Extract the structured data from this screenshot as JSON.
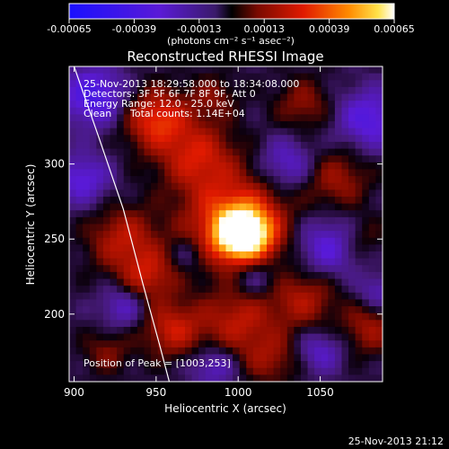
{
  "colorbar": {
    "tick_labels": [
      "-0.00065",
      "-0.00039",
      "-0.00013",
      "0.00013",
      "0.00039",
      "0.00065"
    ],
    "units": "(photons cm⁻² s⁻¹ asec⁻²)"
  },
  "chart_data": {
    "type": "heatmap",
    "title": "Reconstructed RHESSI Image",
    "xlabel": "Heliocentric X (arcsec)",
    "ylabel": "Heliocentric Y (arcsec)",
    "xlim": [
      897,
      1088
    ],
    "ylim": [
      155,
      365
    ],
    "x_ticks": [
      900,
      950,
      1000,
      1050
    ],
    "y_ticks": [
      200,
      250,
      300
    ],
    "value_range": [
      -0.00065,
      0.00065
    ],
    "colormap": "blue-purple-red-orange-yellow-white",
    "peak": {
      "x": 1003,
      "y": 253
    },
    "limb_curve": [
      [
        900,
        365
      ],
      [
        915,
        318
      ],
      [
        930,
        270
      ],
      [
        942,
        220
      ],
      [
        952,
        180
      ],
      [
        958,
        155
      ]
    ],
    "annotations": {
      "time_range": "25-Nov-2013 18:29:58.000 to 18:34:08.000",
      "detectors": "Detectors: 3F 5F 6F 7F 8F 9F, Att 0",
      "energy": "Energy Range: 12.0 - 25.0 keV",
      "clean": "Clean",
      "counts": "Total counts: 1.14E+04",
      "peak_label": "Position of Peak = [1003,253]"
    }
  },
  "footer": {
    "timestamp": "25-Nov-2013 21:12"
  }
}
